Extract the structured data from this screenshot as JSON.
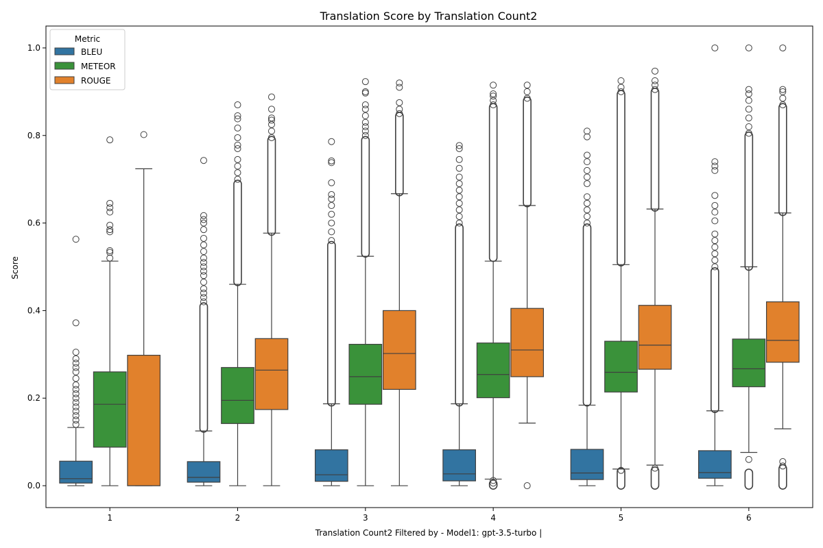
{
  "chart_data": {
    "type": "box",
    "title": "Translation Score by Translation Count2",
    "xlabel": "Translation Count2 Filtered by - Model1: gpt-3.5-turbo |",
    "ylabel": "Score",
    "ylim": [
      -0.05,
      1.05
    ],
    "yticks": [
      "0.0",
      "0.2",
      "0.4",
      "0.6",
      "0.8",
      "1.0"
    ],
    "categories": [
      "1",
      "2",
      "3",
      "4",
      "5",
      "6"
    ],
    "legend": {
      "title": "Metric",
      "placement": "top-left"
    },
    "series": [
      {
        "name": "BLEU",
        "color": "#3274a1",
        "boxes": [
          {
            "category": "1",
            "q1": 0.006,
            "median": 0.016,
            "q3": 0.056,
            "whisker_low": 0.0,
            "whisker_high": 0.133,
            "outliers_high": [
              0.14,
              0.15,
              0.16,
              0.17,
              0.18,
              0.19,
              0.2,
              0.21,
              0.22,
              0.23,
              0.245,
              0.26,
              0.27,
              0.28,
              0.29,
              0.305,
              0.372,
              0.563
            ],
            "dense_high": [],
            "outliers_low": [],
            "dense_low": []
          },
          {
            "category": "2",
            "q1": 0.008,
            "median": 0.019,
            "q3": 0.055,
            "whisker_low": 0.0,
            "whisker_high": 0.125,
            "outliers_high": [
              0.42,
              0.43,
              0.44,
              0.45,
              0.465,
              0.48,
              0.49,
              0.5,
              0.51,
              0.52,
              0.535,
              0.55,
              0.565,
              0.585,
              0.6,
              0.608,
              0.617,
              0.743
            ],
            "dense_high": [
              0.13,
              0.41
            ],
            "outliers_low": [],
            "dense_low": []
          },
          {
            "category": "3",
            "q1": 0.01,
            "median": 0.025,
            "q3": 0.082,
            "whisker_low": 0.0,
            "whisker_high": 0.187,
            "outliers_high": [
              0.56,
              0.58,
              0.6,
              0.62,
              0.64,
              0.655,
              0.665,
              0.692,
              0.738,
              0.742,
              0.786
            ],
            "dense_high": [
              0.19,
              0.55
            ],
            "outliers_low": [],
            "dense_low": []
          },
          {
            "category": "4",
            "q1": 0.011,
            "median": 0.027,
            "q3": 0.082,
            "whisker_low": 0.0,
            "whisker_high": 0.187,
            "outliers_high": [
              0.6,
              0.615,
              0.63,
              0.645,
              0.66,
              0.675,
              0.69,
              0.705,
              0.725,
              0.745,
              0.77,
              0.777
            ],
            "dense_high": [
              0.19,
              0.59
            ],
            "outliers_low": [],
            "dense_low": []
          },
          {
            "category": "5",
            "q1": 0.014,
            "median": 0.029,
            "q3": 0.083,
            "whisker_low": 0.0,
            "whisker_high": 0.184,
            "outliers_high": [
              0.6,
              0.615,
              0.63,
              0.645,
              0.66,
              0.69,
              0.705,
              0.72,
              0.74,
              0.755,
              0.797,
              0.81
            ],
            "dense_high": [
              0.19,
              0.59
            ],
            "outliers_low": [],
            "dense_low": []
          },
          {
            "category": "6",
            "q1": 0.017,
            "median": 0.03,
            "q3": 0.08,
            "whisker_low": 0.0,
            "whisker_high": 0.171,
            "outliers_high": [
              0.5,
              0.515,
              0.53,
              0.545,
              0.56,
              0.575,
              0.605,
              0.625,
              0.64,
              0.663,
              0.72,
              0.73,
              0.74,
              1.0
            ],
            "dense_high": [
              0.175,
              0.49
            ],
            "outliers_low": [],
            "dense_low": []
          }
        ]
      },
      {
        "name": "METEOR",
        "color": "#3a923a",
        "boxes": [
          {
            "category": "1",
            "q1": 0.088,
            "median": 0.186,
            "q3": 0.26,
            "whisker_low": 0.0,
            "whisker_high": 0.513,
            "outliers_high": [
              0.52,
              0.533,
              0.537,
              0.58,
              0.585,
              0.595,
              0.625,
              0.635,
              0.645,
              0.79
            ],
            "dense_high": [],
            "outliers_low": [],
            "dense_low": []
          },
          {
            "category": "2",
            "q1": 0.142,
            "median": 0.195,
            "q3": 0.27,
            "whisker_low": 0.0,
            "whisker_high": 0.46,
            "outliers_high": [
              0.7,
              0.715,
              0.73,
              0.745,
              0.77,
              0.778,
              0.795,
              0.817,
              0.838,
              0.845,
              0.87
            ],
            "dense_high": [
              0.465,
              0.69
            ],
            "outliers_low": [],
            "dense_low": []
          },
          {
            "category": "3",
            "q1": 0.186,
            "median": 0.249,
            "q3": 0.323,
            "whisker_low": 0.0,
            "whisker_high": 0.524,
            "outliers_high": [
              0.8,
              0.81,
              0.82,
              0.83,
              0.845,
              0.86,
              0.87,
              0.897,
              0.9,
              0.923
            ],
            "dense_high": [
              0.53,
              0.79
            ],
            "outliers_low": [],
            "dense_low": []
          },
          {
            "category": "4",
            "q1": 0.201,
            "median": 0.254,
            "q3": 0.326,
            "whisker_low": 0.015,
            "whisker_high": 0.513,
            "outliers_high": [
              0.87,
              0.88,
              0.89,
              0.895,
              0.915
            ],
            "dense_high": [
              0.52,
              0.865
            ],
            "outliers_low": [
              0.012,
              0.006
            ],
            "dense_low": [
              0.0,
              0.005
            ]
          },
          {
            "category": "5",
            "q1": 0.214,
            "median": 0.259,
            "q3": 0.33,
            "whisker_low": 0.038,
            "whisker_high": 0.505,
            "outliers_high": [
              0.9,
              0.91,
              0.925
            ],
            "dense_high": [
              0.51,
              0.895
            ],
            "outliers_low": [
              0.035
            ],
            "dense_low": [
              0.0,
              0.033
            ]
          },
          {
            "category": "6",
            "q1": 0.226,
            "median": 0.267,
            "q3": 0.335,
            "whisker_low": 0.076,
            "whisker_high": 0.5,
            "outliers_high": [
              0.805,
              0.82,
              0.84,
              0.86,
              0.88,
              0.895,
              0.905,
              1.0
            ],
            "dense_high": [
              0.5,
              0.8
            ],
            "outliers_low": [
              0.06
            ],
            "dense_low": [
              0.0,
              0.03
            ]
          }
        ]
      },
      {
        "name": "ROUGE",
        "color": "#e1812c",
        "boxes": [
          {
            "category": "1",
            "q1": 0.0,
            "median": 0.0,
            "q3": 0.298,
            "whisker_low": 0.0,
            "whisker_high": 0.724,
            "outliers_high": [
              0.802
            ],
            "dense_high": [],
            "outliers_low": [],
            "dense_low": []
          },
          {
            "category": "2",
            "q1": 0.174,
            "median": 0.264,
            "q3": 0.336,
            "whisker_low": 0.0,
            "whisker_high": 0.577,
            "outliers_high": [
              0.795,
              0.81,
              0.825,
              0.835,
              0.84,
              0.86,
              0.888
            ],
            "dense_high": [
              0.58,
              0.79
            ],
            "outliers_low": [],
            "dense_low": []
          },
          {
            "category": "3",
            "q1": 0.22,
            "median": 0.302,
            "q3": 0.4,
            "whisker_low": 0.0,
            "whisker_high": 0.667,
            "outliers_high": [
              0.85,
              0.86,
              0.875,
              0.91,
              0.92
            ],
            "dense_high": [
              0.67,
              0.845
            ],
            "outliers_low": [],
            "dense_low": []
          },
          {
            "category": "4",
            "q1": 0.249,
            "median": 0.31,
            "q3": 0.405,
            "whisker_low": 0.143,
            "whisker_high": 0.64,
            "outliers_high": [
              0.885,
              0.9,
              0.915
            ],
            "dense_high": [
              0.645,
              0.88
            ],
            "outliers_low": [
              0.0
            ],
            "dense_low": []
          },
          {
            "category": "5",
            "q1": 0.266,
            "median": 0.321,
            "q3": 0.412,
            "whisker_low": 0.047,
            "whisker_high": 0.632,
            "outliers_high": [
              0.905,
              0.915,
              0.925,
              0.947
            ],
            "dense_high": [
              0.635,
              0.9
            ],
            "outliers_low": [
              0.04
            ],
            "dense_low": [
              0.0,
              0.035
            ]
          },
          {
            "category": "6",
            "q1": 0.282,
            "median": 0.332,
            "q3": 0.42,
            "whisker_low": 0.13,
            "whisker_high": 0.623,
            "outliers_high": [
              0.87,
              0.885,
              0.9,
              0.905,
              1.0
            ],
            "dense_high": [
              0.625,
              0.865
            ],
            "outliers_low": [
              0.055,
              0.045
            ],
            "dense_low": [
              0.0,
              0.04
            ]
          }
        ]
      }
    ]
  }
}
